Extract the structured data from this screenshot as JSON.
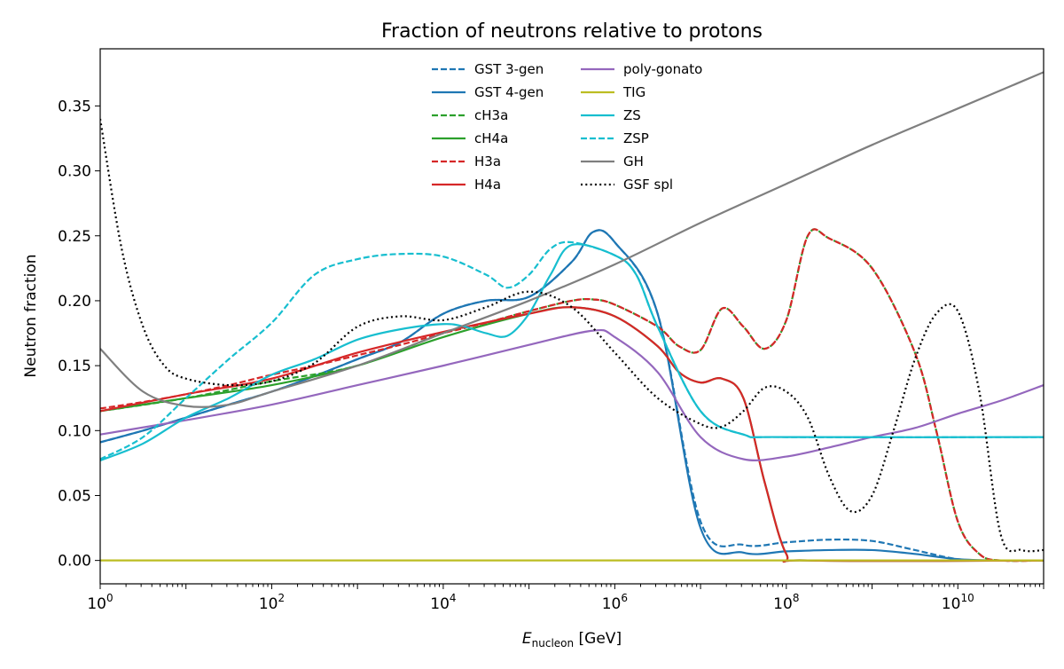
{
  "chart_data": {
    "type": "line",
    "title": "Fraction of neutrons relative to protons",
    "xlabel_main": "E",
    "xlabel_sub": "nucleon",
    "xlabel_unit": " [GeV]",
    "ylabel": "Neutron fraction",
    "xscale": "log",
    "xlim": [
      1,
      100000000000.0
    ],
    "ylim": [
      -0.018,
      0.394
    ],
    "xticks": [
      {
        "base": "10",
        "exp": "0",
        "v": 1
      },
      {
        "base": "10",
        "exp": "2",
        "v": 100
      },
      {
        "base": "10",
        "exp": "4",
        "v": 10000.0
      },
      {
        "base": "10",
        "exp": "6",
        "v": 1000000.0
      },
      {
        "base": "10",
        "exp": "8",
        "v": 100000000.0
      },
      {
        "base": "10",
        "exp": "10",
        "v": 10000000000.0
      }
    ],
    "yticks": [
      "0.00",
      "0.05",
      "0.10",
      "0.15",
      "0.20",
      "0.25",
      "0.30",
      "0.35"
    ],
    "grid": false,
    "legend_placement": "top-center",
    "series": [
      {
        "name": "GST 3-gen",
        "color": "#1f77b4",
        "dash": "dashed",
        "x": [
          1,
          3.16,
          10,
          31.6,
          100,
          316,
          1000.0,
          3160.0,
          10000.0,
          31600.0,
          100000.0,
          316000.0,
          560000.0,
          1000000.0,
          3160000.0,
          10000000.0,
          31600000.0,
          100000000.0,
          316000000.0,
          1000000000.0,
          3160000000.0,
          10000000000.0,
          31600000000.0,
          100000000000.0
        ],
        "y": [
          0.091,
          0.1,
          0.11,
          0.12,
          0.13,
          0.142,
          0.155,
          0.168,
          0.19,
          0.2,
          0.203,
          0.23,
          0.253,
          0.245,
          0.19,
          0.03,
          0.012,
          0.014,
          0.016,
          0.015,
          0.008,
          0.001,
          0,
          0
        ]
      },
      {
        "name": "GST 4-gen",
        "color": "#1f77b4",
        "dash": "solid",
        "x": [
          1,
          3.16,
          10,
          31.6,
          100,
          316,
          1000.0,
          3160.0,
          10000.0,
          31600.0,
          100000.0,
          316000.0,
          560000.0,
          1000000.0,
          3160000.0,
          10000000.0,
          31600000.0,
          100000000.0,
          316000000.0,
          1000000000.0,
          3160000000.0,
          10000000000.0,
          31600000000.0,
          100000000000.0
        ],
        "y": [
          0.091,
          0.1,
          0.11,
          0.12,
          0.13,
          0.142,
          0.155,
          0.168,
          0.19,
          0.2,
          0.203,
          0.23,
          0.253,
          0.245,
          0.19,
          0.025,
          0.006,
          0.007,
          0.008,
          0.008,
          0.005,
          0.001,
          0,
          0
        ]
      },
      {
        "name": "cH3a",
        "color": "#2ca02c",
        "dash": "dashed",
        "x": [
          1,
          10,
          100,
          1000.0,
          10000.0,
          31600.0,
          100000.0,
          316000.0,
          560000.0,
          1000000.0,
          3160000.0,
          5600000.0,
          10000000.0,
          17800000.0,
          31600000.0,
          56000000.0,
          100000000.0,
          178000000.0,
          316000000.0,
          1000000000.0,
          3160000000.0,
          5600000000.0,
          10000000000.0,
          17800000000.0,
          31600000000.0,
          100000000000.0
        ],
        "y": [
          0.115,
          0.125,
          0.138,
          0.15,
          0.175,
          0.183,
          0.192,
          0.2,
          0.201,
          0.197,
          0.18,
          0.165,
          0.162,
          0.194,
          0.18,
          0.163,
          0.185,
          0.25,
          0.248,
          0.225,
          0.16,
          0.1,
          0.03,
          0.005,
          0,
          0
        ]
      },
      {
        "name": "cH4a",
        "color": "#2ca02c",
        "dash": "solid",
        "x": [
          1,
          10,
          100,
          1000.0,
          10000.0,
          100000.0,
          316000.0,
          1000000.0,
          3160000.0,
          5600000.0,
          10000000.0,
          17800000.0,
          31600000.0,
          56000000.0,
          100000000.0,
          178000000.0,
          100000000000.0
        ],
        "y": [
          0.115,
          0.125,
          0.135,
          0.15,
          0.172,
          0.19,
          0.195,
          0.188,
          0.165,
          0.145,
          0.137,
          0.14,
          0.125,
          0.06,
          0.005,
          0,
          0
        ]
      },
      {
        "name": "H3a",
        "color": "#d62728",
        "dash": "dashed",
        "x": [
          1,
          3.16,
          10,
          31.6,
          100,
          316,
          1000.0,
          3160.0,
          10000.0,
          31600.0,
          100000.0,
          316000.0,
          560000.0,
          1000000.0,
          3160000.0,
          5600000.0,
          10000000.0,
          17800000.0,
          31600000.0,
          56000000.0,
          100000000.0,
          178000000.0,
          316000000.0,
          1000000000.0,
          3160000000.0,
          5600000000.0,
          10000000000.0,
          17800000000.0,
          31600000000.0,
          100000000000.0
        ],
        "y": [
          0.117,
          0.122,
          0.128,
          0.135,
          0.143,
          0.15,
          0.158,
          0.166,
          0.175,
          0.183,
          0.192,
          0.2,
          0.201,
          0.197,
          0.18,
          0.165,
          0.162,
          0.194,
          0.18,
          0.163,
          0.185,
          0.25,
          0.248,
          0.225,
          0.16,
          0.1,
          0.03,
          0.005,
          0,
          0
        ]
      },
      {
        "name": "H4a",
        "color": "#d62728",
        "dash": "solid",
        "x": [
          1,
          10,
          100,
          1000.0,
          10000.0,
          100000.0,
          316000.0,
          1000000.0,
          3160000.0,
          5600000.0,
          10000000.0,
          17800000.0,
          31600000.0,
          56000000.0,
          100000000.0,
          178000000.0,
          100000000000.0
        ],
        "y": [
          0.115,
          0.128,
          0.14,
          0.16,
          0.176,
          0.19,
          0.195,
          0.188,
          0.165,
          0.145,
          0.137,
          0.14,
          0.125,
          0.06,
          0.005,
          0,
          0
        ]
      },
      {
        "name": "poly-gonato",
        "color": "#9467bd",
        "dash": "solid",
        "x": [
          1,
          10,
          100,
          1000.0,
          10000.0,
          100000.0,
          560000.0,
          1000000.0,
          3160000.0,
          10000000.0,
          31600000.0,
          100000000.0,
          316000000.0,
          1000000000.0,
          3160000000.0,
          10000000000.0,
          31600000000.0,
          100000000000.0
        ],
        "y": [
          0.097,
          0.108,
          0.12,
          0.135,
          0.15,
          0.166,
          0.177,
          0.172,
          0.145,
          0.095,
          0.078,
          0.08,
          0.087,
          0.095,
          0.102,
          0.113,
          0.123,
          0.135
        ]
      },
      {
        "name": "TIG",
        "color": "#bcbd22",
        "dash": "solid",
        "x": [
          1,
          100000000000.0
        ],
        "y": [
          0,
          0
        ]
      },
      {
        "name": "ZS",
        "color": "#17becf",
        "dash": "solid",
        "x": [
          1,
          3.16,
          10,
          31.6,
          100,
          316,
          1000.0,
          3160.0,
          10000.0,
          17800.0,
          31600.0,
          56000.0,
          100000.0,
          178000.0,
          316000.0,
          1000000.0,
          1780000.0,
          3160000.0,
          10000000.0,
          31600000.0,
          100000000.0,
          100000000000.0
        ],
        "y": [
          0.077,
          0.09,
          0.11,
          0.125,
          0.143,
          0.155,
          0.17,
          0.178,
          0.182,
          0.18,
          0.175,
          0.173,
          0.19,
          0.22,
          0.243,
          0.235,
          0.22,
          0.18,
          0.115,
          0.097,
          0.095,
          0.095
        ]
      },
      {
        "name": "ZSP",
        "color": "#17becf",
        "dash": "dashed",
        "x": [
          1,
          3.16,
          10,
          31.6,
          100,
          316,
          1000.0,
          3160.0,
          10000.0,
          31600.0,
          56000.0,
          100000.0,
          178000.0,
          316000.0,
          1000000.0,
          1780000.0,
          3160000.0,
          10000000.0,
          31600000.0,
          100000000.0,
          100000000000.0
        ],
        "y": [
          0.078,
          0.095,
          0.125,
          0.155,
          0.183,
          0.22,
          0.232,
          0.236,
          0.234,
          0.22,
          0.21,
          0.22,
          0.24,
          0.245,
          0.235,
          0.22,
          0.18,
          0.115,
          0.097,
          0.095,
          0.095
        ]
      },
      {
        "name": "GH",
        "color": "#7f7f7f",
        "dash": "solid",
        "x": [
          1,
          3.16,
          10,
          31.6,
          100,
          1000.0,
          10000.0,
          100000.0,
          1000000.0,
          10000000.0,
          100000000.0,
          1000000000.0,
          10000000000.0,
          100000000000.0
        ],
        "y": [
          0.163,
          0.13,
          0.119,
          0.12,
          0.13,
          0.15,
          0.175,
          0.2,
          0.228,
          0.26,
          0.29,
          0.32,
          0.348,
          0.376
        ]
      },
      {
        "name": "GSF spl",
        "color": "#000000",
        "dash": "dotted",
        "x": [
          1,
          1.78,
          3.16,
          5.6,
          10,
          31.6,
          100,
          316,
          1000.0,
          3160.0,
          10000.0,
          31600.0,
          100000.0,
          316000.0,
          1000000.0,
          3160000.0,
          10000000.0,
          17800000.0,
          31600000.0,
          56000000.0,
          100000000.0,
          178000000.0,
          316000000.0,
          560000000.0,
          1000000000.0,
          1780000000.0,
          3160000000.0,
          5600000000.0,
          10000000000.0,
          17800000000.0,
          31600000000.0,
          56000000000.0,
          100000000000.0
        ],
        "y": [
          0.34,
          0.24,
          0.18,
          0.15,
          0.14,
          0.135,
          0.138,
          0.152,
          0.18,
          0.188,
          0.185,
          0.195,
          0.207,
          0.195,
          0.16,
          0.125,
          0.105,
          0.103,
          0.115,
          0.133,
          0.13,
          0.11,
          0.065,
          0.038,
          0.05,
          0.1,
          0.155,
          0.19,
          0.192,
          0.13,
          0.02,
          0.008,
          0.008
        ]
      }
    ]
  }
}
